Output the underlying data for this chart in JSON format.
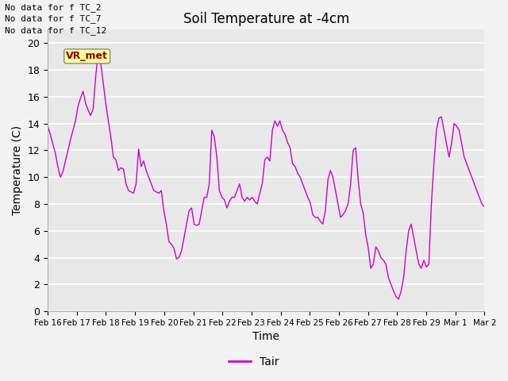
{
  "title": "Soil Temperature at -4cm",
  "xlabel": "Time",
  "ylabel": "Temperature (C)",
  "ylim": [
    0,
    21
  ],
  "yticks": [
    0,
    2,
    4,
    6,
    8,
    10,
    12,
    14,
    16,
    18,
    20
  ],
  "line_color": "#CC00CC",
  "legend_label": "Tair",
  "plot_bg_color": "#E8E8E8",
  "fig_bg_color": "#F2F2F2",
  "annotations": [
    "No data for f TC_2",
    "No data for f TC_7",
    "No data for f TC_12"
  ],
  "tooltip_text": "VR_met",
  "xtick_labels": [
    "Feb 16",
    "Feb 17",
    "Feb 18",
    "Feb 19",
    "Feb 20",
    "Feb 21",
    "Feb 22",
    "Feb 23",
    "Feb 24",
    "Feb 25",
    "Feb 26",
    "Feb 27",
    "Feb 28",
    "Feb 29",
    "Mar 1",
    "Mar 2"
  ],
  "temp_values": [
    13.8,
    13.2,
    12.5,
    11.8,
    10.8,
    10.0,
    10.4,
    11.2,
    12.0,
    12.8,
    13.5,
    14.2,
    15.3,
    15.9,
    16.4,
    15.5,
    15.0,
    14.6,
    15.1,
    17.5,
    19.3,
    18.5,
    17.0,
    15.5,
    14.2,
    13.0,
    11.5,
    11.3,
    10.5,
    10.7,
    10.6,
    9.5,
    9.0,
    8.9,
    8.8,
    9.5,
    12.1,
    10.8,
    11.2,
    10.5,
    10.0,
    9.5,
    9.0,
    8.9,
    8.8,
    9.0,
    7.5,
    6.5,
    5.2,
    5.0,
    4.7,
    3.9,
    4.0,
    4.5,
    5.5,
    6.5,
    7.5,
    7.7,
    6.5,
    6.4,
    6.5,
    7.5,
    8.5,
    8.5,
    9.5,
    13.5,
    13.0,
    11.5,
    9.0,
    8.5,
    8.3,
    7.7,
    8.2,
    8.5,
    8.5,
    9.0,
    9.5,
    8.5,
    8.2,
    8.5,
    8.3,
    8.5,
    8.2,
    8.0,
    8.8,
    9.5,
    11.3,
    11.5,
    11.2,
    13.5,
    14.2,
    13.8,
    14.2,
    13.5,
    13.2,
    12.6,
    12.2,
    11.0,
    10.8,
    10.3,
    10.0,
    9.5,
    9.0,
    8.5,
    8.1,
    7.2,
    7.0,
    7.0,
    6.7,
    6.5,
    7.5,
    9.8,
    10.5,
    10.0,
    9.0,
    8.0,
    7.0,
    7.2,
    7.5,
    8.0,
    9.5,
    12.0,
    12.2,
    9.8,
    8.0,
    7.3,
    5.7,
    4.7,
    3.2,
    3.5,
    4.8,
    4.5,
    4.0,
    3.8,
    3.5,
    2.5,
    2.0,
    1.5,
    1.1,
    0.9,
    1.5,
    2.5,
    4.5,
    6.0,
    6.5,
    5.5,
    4.5,
    3.5,
    3.2,
    3.8,
    3.3,
    3.5,
    8.0,
    11.0,
    13.5,
    14.4,
    14.5,
    13.5,
    12.5,
    11.5,
    12.5,
    14.0,
    13.8,
    13.5,
    12.5,
    11.5,
    11.0,
    10.5,
    10.0,
    9.5,
    9.0,
    8.5,
    8.0,
    7.8
  ]
}
